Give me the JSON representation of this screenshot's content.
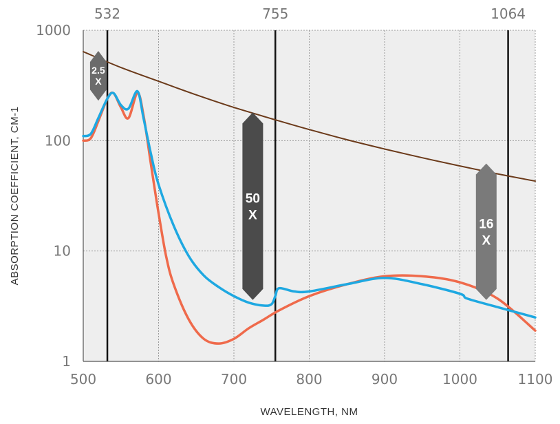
{
  "chart_data": {
    "type": "line",
    "title": "",
    "xlabel": "WAVELENGTH, NM",
    "ylabel": "ABSORPTION COEFFICIENT, CM-1",
    "xlim": [
      500,
      1100
    ],
    "ylim": [
      1,
      1000
    ],
    "yscale": "log",
    "grid": true,
    "x_ticks": [
      "500",
      "600",
      "700",
      "800",
      "900",
      "1000",
      "1100"
    ],
    "y_ticks": [
      "1",
      "10",
      "100",
      "1000"
    ],
    "wavelength_markers": [
      {
        "label": "532",
        "x": 532
      },
      {
        "label": "755",
        "x": 755
      },
      {
        "label": "1064",
        "x": 1064
      }
    ],
    "badges": [
      {
        "label_top": "2.5",
        "label_bottom": "X",
        "x": 520,
        "y_low": 230,
        "y_high": 650,
        "color": "#6b6b6b"
      },
      {
        "label_top": "50",
        "label_bottom": "X",
        "x": 725,
        "y_low": 3.6,
        "y_high": 180,
        "color": "#4b4b4b"
      },
      {
        "label_top": "16",
        "label_bottom": "X",
        "x": 1035,
        "y_low": 3.6,
        "y_high": 62,
        "color": "#7a7a7a"
      }
    ],
    "series": [
      {
        "color": "#6b3a1a",
        "x": [
          500,
          550,
          600,
          650,
          700,
          750,
          800,
          850,
          900,
          950,
          1000,
          1050,
          1100
        ],
        "y": [
          640,
          460,
          345,
          260,
          200,
          158,
          126,
          102,
          84,
          70,
          59,
          50,
          43
        ]
      },
      {
        "color": "#ef6a4b",
        "x": [
          500,
          510,
          520,
          532,
          540,
          550,
          560,
          572,
          580,
          590,
          600,
          610,
          620,
          640,
          660,
          680,
          700,
          720,
          740,
          760,
          800,
          850,
          900,
          950,
          1000,
          1050,
          1100
        ],
        "y": [
          100,
          105,
          150,
          240,
          270,
          200,
          160,
          270,
          170,
          60,
          22,
          9,
          5,
          2.4,
          1.6,
          1.45,
          1.6,
          2.0,
          2.4,
          2.9,
          3.9,
          5.0,
          5.9,
          5.9,
          5.2,
          3.7,
          1.9
        ]
      },
      {
        "color": "#1ea8e1",
        "x": [
          500,
          510,
          520,
          532,
          540,
          550,
          560,
          572,
          580,
          590,
          600,
          620,
          640,
          660,
          680,
          700,
          720,
          740,
          750,
          755,
          760,
          780,
          800,
          850,
          900,
          950,
          1000,
          1010,
          1050,
          1100
        ],
        "y": [
          110,
          115,
          160,
          240,
          270,
          210,
          195,
          280,
          160,
          75,
          40,
          17,
          9,
          6,
          4.7,
          3.9,
          3.4,
          3.2,
          3.3,
          3.9,
          4.6,
          4.3,
          4.3,
          5.0,
          5.7,
          5.0,
          4.1,
          3.7,
          3.1,
          2.5
        ]
      }
    ]
  }
}
